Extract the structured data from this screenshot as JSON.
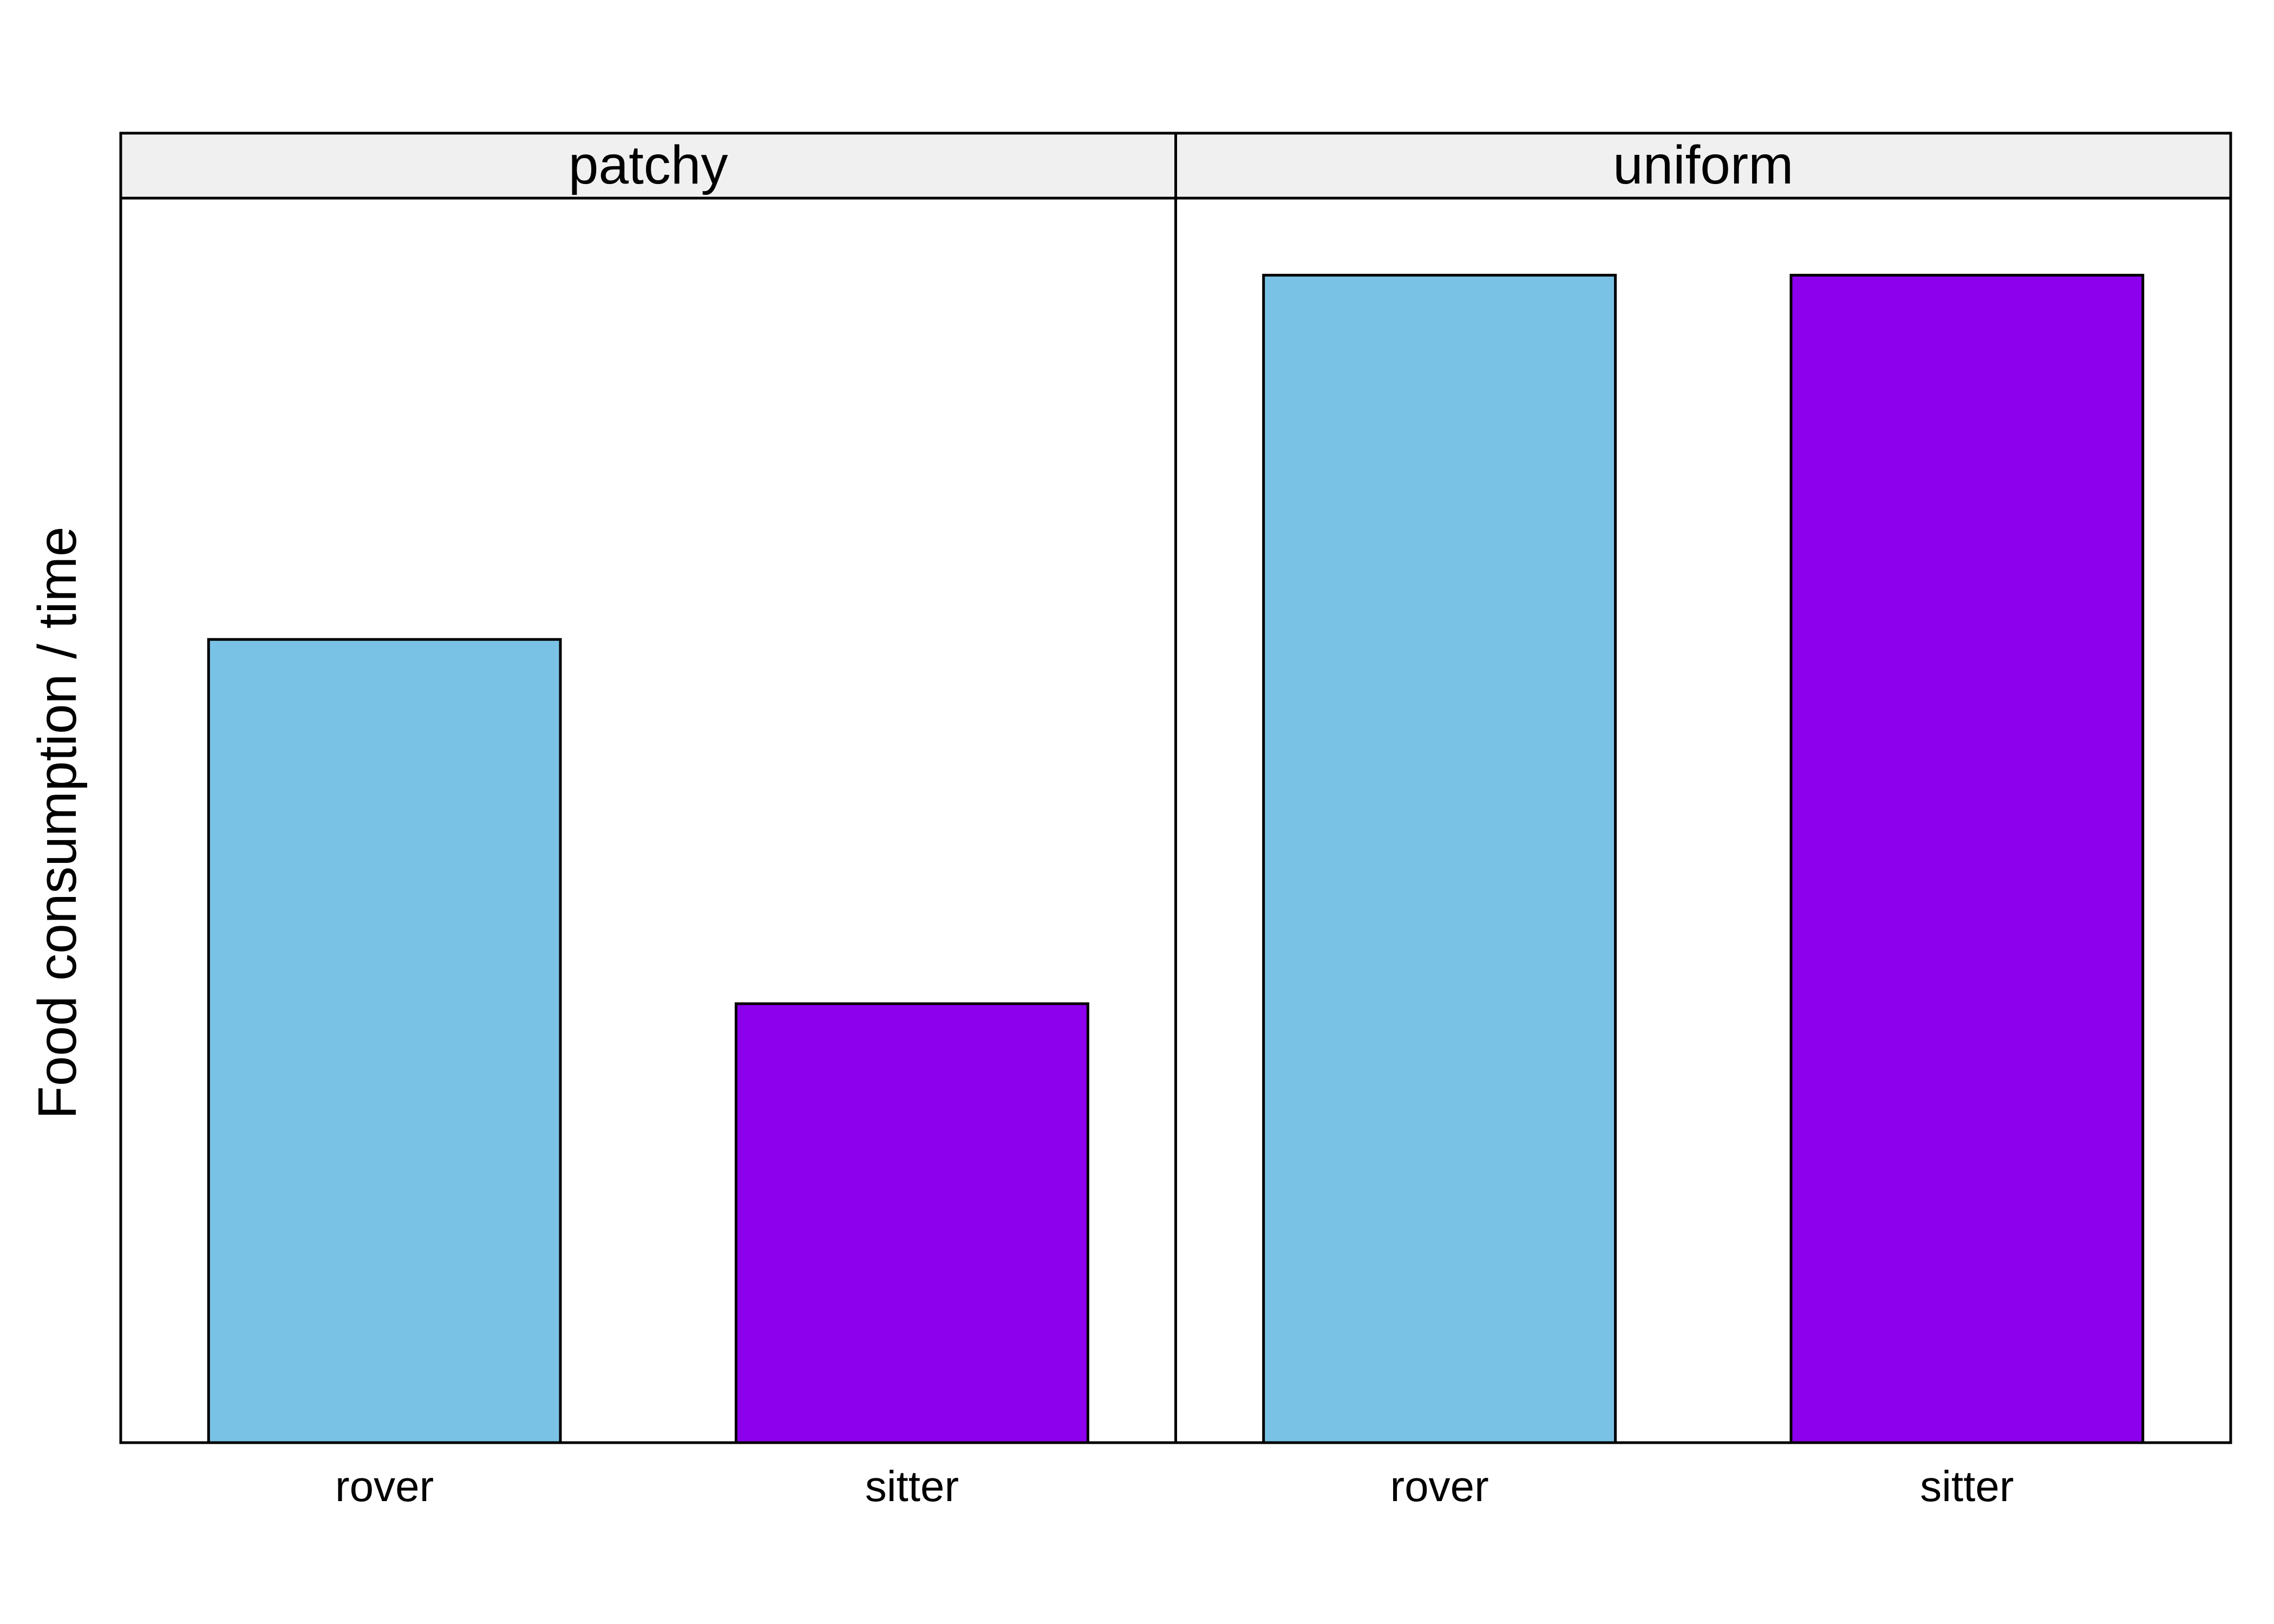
{
  "chart_data": {
    "type": "bar",
    "title": "",
    "xlabel": "",
    "ylabel": "Food consumption / time",
    "ylim": [
      0,
      1.066
    ],
    "grid": false,
    "legend": "none",
    "facets": [
      {
        "label": "patchy",
        "categories": [
          "rover",
          "sitter"
        ],
        "values": [
          0.688,
          0.376
        ],
        "colors": [
          "#7AC2E5",
          "#8C00EE"
        ]
      },
      {
        "label": "uniform",
        "categories": [
          "rover",
          "sitter"
        ],
        "values": [
          1.0,
          1.0
        ],
        "colors": [
          "#7AC2E5",
          "#8C00EE"
        ]
      }
    ]
  },
  "colors": {
    "strip_background": "#F0F0F0",
    "border": "#000000"
  }
}
